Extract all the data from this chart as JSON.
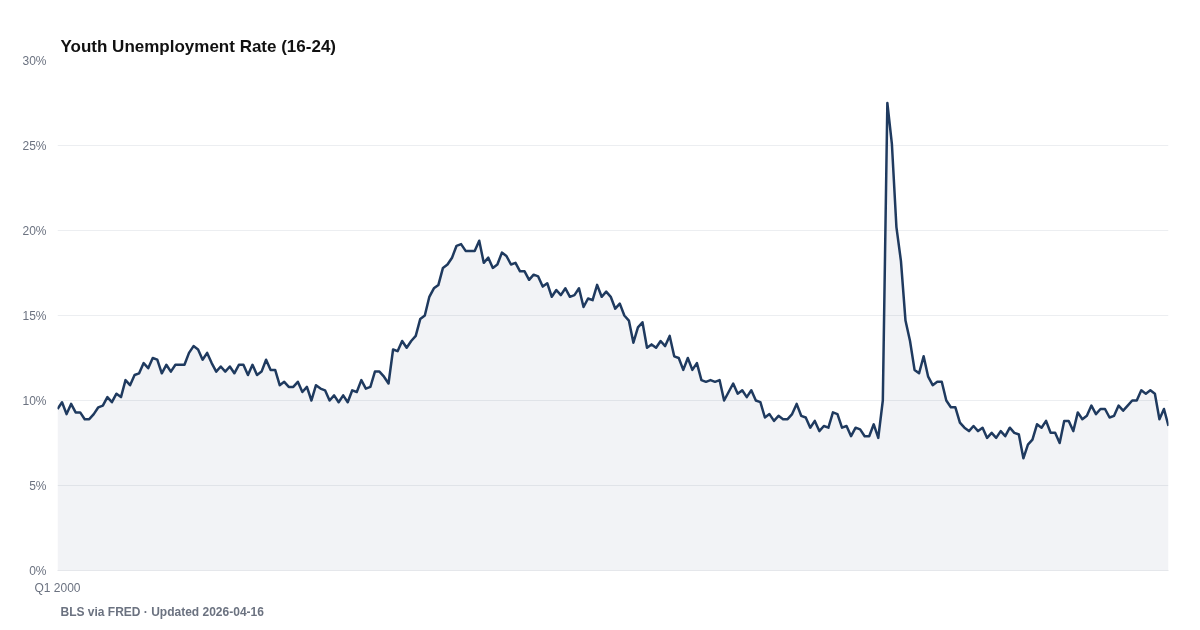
{
  "chart_data": {
    "type": "area",
    "title": "Youth Unemployment Rate (16-24)",
    "annotations": [
      "BLS via FRED · Updated 2026-04-16"
    ],
    "color": "#1f3a5f",
    "grid": "y",
    "ylim": [
      0,
      30
    ],
    "yticks": [
      {
        "value": 0,
        "label": "0%"
      },
      {
        "value": 5,
        "label": "5%"
      },
      {
        "value": 10,
        "label": "10%"
      },
      {
        "value": 15,
        "label": "15%"
      },
      {
        "value": 20,
        "label": "20%"
      },
      {
        "value": 25,
        "label": "25%"
      },
      {
        "value": 30,
        "label": "30%"
      }
    ],
    "categories": [
      "Q1 2000",
      null,
      null,
      null,
      null,
      null,
      null,
      null,
      null,
      null,
      null,
      null,
      null,
      null,
      null,
      null,
      null,
      null,
      null,
      null,
      null,
      null,
      null,
      null,
      null,
      null,
      null,
      null,
      null,
      null,
      null,
      null,
      null,
      null,
      null,
      null,
      null,
      null,
      null,
      null,
      null,
      null,
      null,
      null,
      null,
      null,
      null,
      null,
      null,
      null,
      null,
      null,
      null,
      null,
      null,
      null,
      null,
      null,
      null,
      null,
      null,
      null,
      null,
      null,
      null,
      null,
      null,
      null,
      null,
      null,
      null,
      null,
      null,
      null,
      null,
      null,
      null,
      null,
      null,
      null,
      null,
      null,
      null,
      null,
      null,
      null,
      null,
      null,
      null,
      null,
      null,
      null,
      null,
      null,
      null,
      null,
      null,
      null,
      null,
      null,
      null,
      null,
      null,
      null,
      null,
      null,
      null,
      null,
      null,
      null,
      null,
      null,
      null,
      null,
      null,
      null,
      null,
      null,
      null,
      null,
      null,
      null,
      null,
      null,
      null,
      null,
      null,
      null,
      null,
      null,
      null,
      null,
      null,
      null,
      null,
      null,
      null,
      null,
      null,
      null,
      null,
      null,
      null,
      null,
      null,
      null,
      null,
      null,
      null,
      null,
      null,
      null,
      null,
      null,
      null,
      null,
      null,
      null,
      null,
      null,
      null,
      null,
      null,
      null,
      null,
      null,
      null,
      null,
      null,
      null,
      null,
      null,
      null,
      null,
      null,
      null,
      null,
      null,
      null,
      null,
      null,
      null,
      null,
      null,
      null,
      null,
      null,
      null,
      null,
      null,
      null,
      null,
      null,
      null,
      null,
      null,
      null,
      null,
      null,
      null,
      null,
      null,
      null,
      null,
      null,
      null,
      null,
      null,
      null,
      null,
      null,
      null,
      null,
      null,
      null,
      null,
      null,
      null,
      null,
      null,
      null,
      null,
      null,
      null,
      null,
      null,
      null,
      null,
      null,
      null,
      null,
      null,
      null,
      null,
      null,
      null,
      null,
      null,
      null,
      null,
      null,
      null,
      null,
      null,
      null,
      null
    ],
    "values": [
      9.5,
      9.9,
      9.2,
      9.8,
      9.3,
      9.3,
      8.9,
      8.9,
      9.2,
      9.6,
      9.7,
      10.2,
      9.9,
      10.4,
      10.2,
      11.2,
      10.9,
      11.5,
      11.6,
      12.2,
      11.9,
      12.5,
      12.4,
      11.6,
      12.1,
      11.7,
      12.1,
      12.1,
      12.1,
      12.8,
      13.2,
      13.0,
      12.4,
      12.8,
      12.2,
      11.7,
      12.0,
      11.7,
      12.0,
      11.6,
      12.1,
      12.1,
      11.5,
      12.1,
      11.5,
      11.7,
      12.4,
      11.8,
      11.8,
      10.9,
      11.1,
      10.8,
      10.8,
      11.1,
      10.5,
      10.8,
      10.0,
      10.9,
      10.7,
      10.6,
      10.0,
      10.3,
      9.9,
      10.3,
      9.9,
      10.6,
      10.5,
      11.2,
      10.7,
      10.8,
      11.7,
      11.7,
      11.4,
      11.0,
      13.0,
      12.9,
      13.5,
      13.1,
      13.5,
      13.8,
      14.8,
      15.0,
      16.1,
      16.6,
      16.8,
      17.8,
      18.0,
      18.4,
      19.1,
      19.2,
      18.8,
      18.8,
      18.8,
      19.4,
      18.1,
      18.4,
      17.8,
      18.0,
      18.7,
      18.5,
      18.0,
      18.1,
      17.6,
      17.6,
      17.1,
      17.4,
      17.3,
      16.7,
      16.9,
      16.1,
      16.5,
      16.2,
      16.6,
      16.1,
      16.2,
      16.6,
      15.5,
      16.0,
      15.9,
      16.8,
      16.1,
      16.4,
      16.1,
      15.4,
      15.7,
      15.0,
      14.7,
      13.4,
      14.3,
      14.6,
      13.1,
      13.3,
      13.1,
      13.5,
      13.2,
      13.8,
      12.6,
      12.5,
      11.8,
      12.5,
      11.8,
      12.2,
      11.2,
      11.1,
      11.2,
      11.1,
      11.2,
      10.0,
      10.5,
      11.0,
      10.4,
      10.6,
      10.2,
      10.6,
      10.0,
      9.9,
      9.0,
      9.2,
      8.8,
      9.1,
      8.9,
      8.9,
      9.2,
      9.8,
      9.1,
      9.0,
      8.4,
      8.8,
      8.2,
      8.5,
      8.4,
      9.3,
      9.2,
      8.4,
      8.5,
      7.9,
      8.4,
      8.3,
      7.9,
      7.9,
      8.6,
      7.8,
      10.0,
      27.5,
      25.1,
      20.2,
      18.2,
      14.7,
      13.5,
      11.8,
      11.6,
      12.6,
      11.4,
      10.9,
      11.1,
      11.1,
      10.0,
      9.6,
      9.6,
      8.7,
      8.4,
      8.2,
      8.5,
      8.2,
      8.4,
      7.8,
      8.1,
      7.8,
      8.2,
      7.9,
      8.4,
      8.1,
      8.0,
      6.6,
      7.4,
      7.7,
      8.6,
      8.4,
      8.8,
      8.1,
      8.1,
      7.5,
      8.8,
      8.8,
      8.2,
      9.3,
      8.9,
      9.1,
      9.7,
      9.2,
      9.5,
      9.5,
      9.0,
      9.1,
      9.7,
      9.4,
      9.7,
      10.0,
      10.0,
      10.6,
      10.4,
      10.6,
      10.4,
      8.9,
      9.5,
      8.5
    ]
  }
}
